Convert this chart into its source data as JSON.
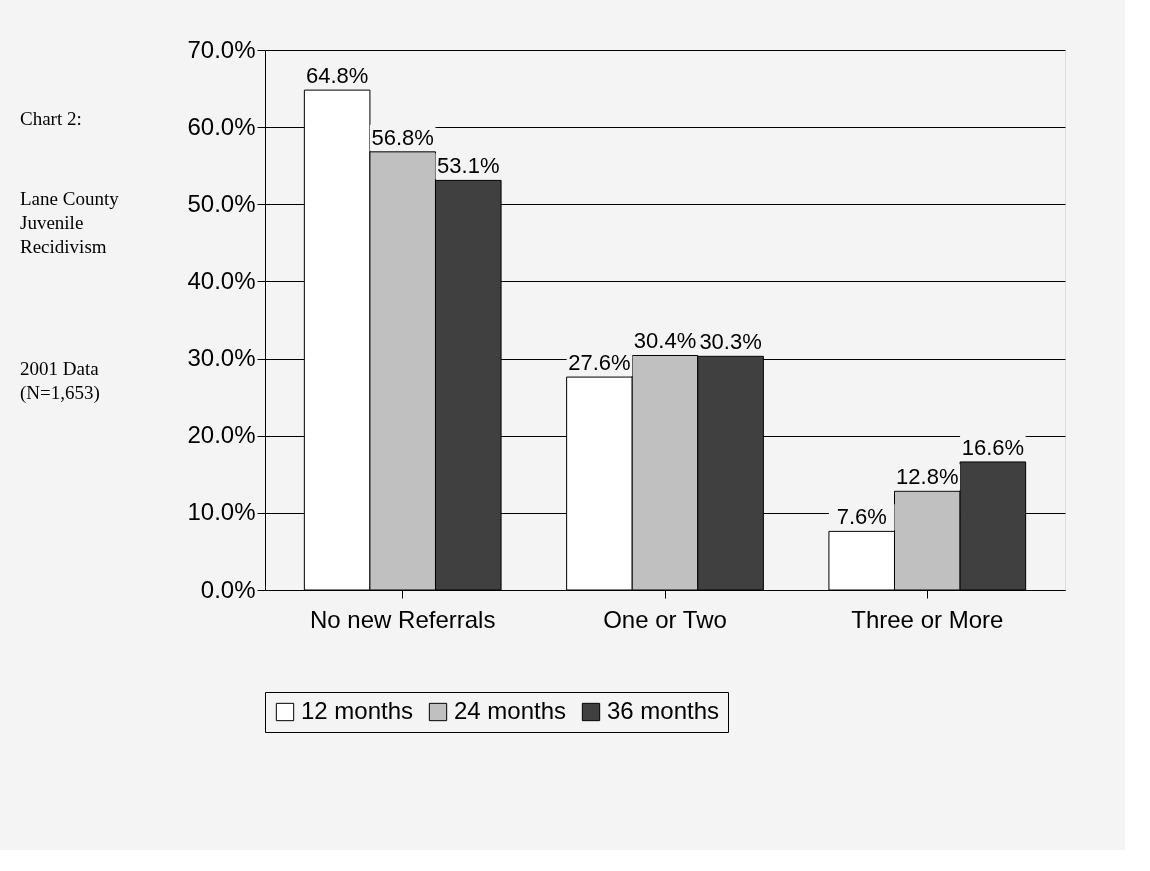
{
  "chart_data": {
    "type": "bar",
    "categories": [
      "No new Referrals",
      "One or Two",
      "Three or More"
    ],
    "series": [
      {
        "name": "12 months",
        "color": "#ffffff",
        "values": [
          64.8,
          27.6,
          7.6
        ],
        "value_labels": [
          "64.8%",
          "27.6%",
          "7.6%"
        ]
      },
      {
        "name": "24 months",
        "color": "#c0c0c0",
        "values": [
          56.8,
          30.4,
          12.8
        ],
        "value_labels": [
          "56.8%",
          "30.4%",
          "12.8%"
        ]
      },
      {
        "name": "36 months",
        "color": "#404040",
        "values": [
          53.1,
          30.3,
          16.6
        ],
        "value_labels": [
          "53.1%",
          "30.3%",
          "16.6%"
        ]
      }
    ],
    "ylim": [
      0,
      70
    ],
    "yticks": [
      {
        "value": 0,
        "label": "0.0%"
      },
      {
        "value": 10,
        "label": "10.0%"
      },
      {
        "value": 20,
        "label": "20.0%"
      },
      {
        "value": 30,
        "label": "30.0%"
      },
      {
        "value": 40,
        "label": "40.0%"
      },
      {
        "value": 50,
        "label": "50.0%"
      },
      {
        "value": 60,
        "label": "60.0%"
      },
      {
        "value": 70,
        "label": "70.0%"
      }
    ],
    "grid": "y",
    "legend": "bottom left",
    "annotations": [
      "Chart 2:",
      "Lane County Juvenile Recidivism",
      "2001 Data (N=1,653)"
    ]
  }
}
